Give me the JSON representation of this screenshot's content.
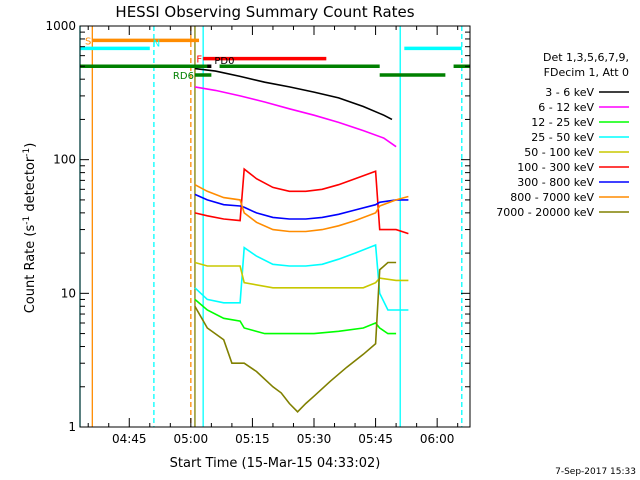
{
  "chart_data": {
    "type": "line",
    "title": "HESSI Observing Summary Count Rates",
    "xlabel": "Start Time (15-Mar-15 04:33:02)",
    "ylabel_main": "Count Rate (s",
    "ylabel_sup1": "-1",
    "ylabel_mid": " detector",
    "ylabel_sup2": "-1",
    "ylabel_end": ")",
    "ylog": true,
    "xlim": [
      "04:33",
      "06:08"
    ],
    "ylim": [
      1,
      1000
    ],
    "xticks": [
      "04:45",
      "05:00",
      "05:15",
      "05:30",
      "05:45",
      "06:00"
    ],
    "yticks": [
      {
        "value": 1,
        "label": "1"
      },
      {
        "value": 10,
        "label": "10"
      },
      {
        "value": 100,
        "label": "100"
      },
      {
        "value": 1000,
        "label": "1000"
      }
    ],
    "legend_position": "right",
    "legend_header": [
      "Det 1,3,5,6,7,9,",
      "FDecim 1, Att 0"
    ],
    "series": [
      {
        "name": "3 - 6 keV",
        "color": "#000000",
        "points": [
          [
            "05:01",
            480
          ],
          [
            "05:06",
            460
          ],
          [
            "05:12",
            420
          ],
          [
            "05:18",
            380
          ],
          [
            "05:24",
            350
          ],
          [
            "05:30",
            320
          ],
          [
            "05:36",
            290
          ],
          [
            "05:42",
            250
          ],
          [
            "05:47",
            215
          ],
          [
            "05:49",
            200
          ]
        ]
      },
      {
        "name": "6 - 12 keV",
        "color": "#ff00ff",
        "points": [
          [
            "05:01",
            350
          ],
          [
            "05:06",
            330
          ],
          [
            "05:12",
            300
          ],
          [
            "05:18",
            270
          ],
          [
            "05:24",
            240
          ],
          [
            "05:30",
            215
          ],
          [
            "05:36",
            190
          ],
          [
            "05:42",
            165
          ],
          [
            "05:47",
            145
          ],
          [
            "05:50",
            125
          ]
        ]
      },
      {
        "name": "12 - 25 keV",
        "color": "#00ff00",
        "points": [
          [
            "05:01",
            9
          ],
          [
            "05:04",
            7.5
          ],
          [
            "05:08",
            6.5
          ],
          [
            "05:12",
            6.2
          ],
          [
            "05:13",
            5.5
          ],
          [
            "05:18",
            5
          ],
          [
            "05:24",
            5
          ],
          [
            "05:30",
            5
          ],
          [
            "05:36",
            5.2
          ],
          [
            "05:42",
            5.5
          ],
          [
            "05:45",
            6
          ],
          [
            "05:46",
            5.5
          ],
          [
            "05:48",
            5
          ],
          [
            "05:50",
            5
          ]
        ]
      },
      {
        "name": "25 - 50 keV",
        "color": "#00ffff",
        "points": [
          [
            "05:01",
            11
          ],
          [
            "05:04",
            9
          ],
          [
            "05:08",
            8.5
          ],
          [
            "05:12",
            8.5
          ],
          [
            "05:13",
            22
          ],
          [
            "05:16",
            19
          ],
          [
            "05:20",
            16.5
          ],
          [
            "05:24",
            16
          ],
          [
            "05:28",
            16
          ],
          [
            "05:32",
            16.5
          ],
          [
            "05:36",
            18
          ],
          [
            "05:40",
            20
          ],
          [
            "05:45",
            23
          ],
          [
            "05:46",
            10
          ],
          [
            "05:48",
            7.5
          ],
          [
            "05:50",
            7.5
          ],
          [
            "05:53",
            7.5
          ]
        ]
      },
      {
        "name": "50 - 100 keV",
        "color": "#c8c800",
        "points": [
          [
            "05:01",
            17
          ],
          [
            "05:04",
            16
          ],
          [
            "05:08",
            16
          ],
          [
            "05:12",
            16
          ],
          [
            "05:13",
            12
          ],
          [
            "05:20",
            11
          ],
          [
            "05:28",
            11
          ],
          [
            "05:36",
            11
          ],
          [
            "05:42",
            11
          ],
          [
            "05:45",
            12
          ],
          [
            "05:46",
            13
          ],
          [
            "05:50",
            12.5
          ],
          [
            "05:53",
            12.5
          ]
        ]
      },
      {
        "name": "100 - 300 keV",
        "color": "#ff0000",
        "points": [
          [
            "05:01",
            40
          ],
          [
            "05:04",
            38
          ],
          [
            "05:08",
            36
          ],
          [
            "05:12",
            35
          ],
          [
            "05:13",
            85
          ],
          [
            "05:16",
            72
          ],
          [
            "05:20",
            62
          ],
          [
            "05:24",
            58
          ],
          [
            "05:28",
            58
          ],
          [
            "05:32",
            60
          ],
          [
            "05:36",
            65
          ],
          [
            "05:40",
            72
          ],
          [
            "05:45",
            82
          ],
          [
            "05:46",
            30
          ],
          [
            "05:48",
            30
          ],
          [
            "05:50",
            30
          ],
          [
            "05:53",
            28
          ]
        ]
      },
      {
        "name": "300 - 800 keV",
        "color": "#0000ff",
        "points": [
          [
            "05:01",
            55
          ],
          [
            "05:04",
            50
          ],
          [
            "05:08",
            46
          ],
          [
            "05:12",
            45
          ],
          [
            "05:13",
            44
          ],
          [
            "05:16",
            40
          ],
          [
            "05:20",
            37
          ],
          [
            "05:24",
            36
          ],
          [
            "05:28",
            36
          ],
          [
            "05:32",
            37
          ],
          [
            "05:36",
            39
          ],
          [
            "05:40",
            42
          ],
          [
            "05:45",
            46
          ],
          [
            "05:46",
            48
          ],
          [
            "05:50",
            50
          ],
          [
            "05:53",
            50
          ]
        ]
      },
      {
        "name": "800 - 7000 keV",
        "color": "#ff8c00",
        "points": [
          [
            "05:01",
            65
          ],
          [
            "05:04",
            58
          ],
          [
            "05:08",
            52
          ],
          [
            "05:12",
            50
          ],
          [
            "05:13",
            40
          ],
          [
            "05:16",
            34
          ],
          [
            "05:20",
            30
          ],
          [
            "05:24",
            29
          ],
          [
            "05:28",
            29
          ],
          [
            "05:32",
            30
          ],
          [
            "05:36",
            32
          ],
          [
            "05:40",
            35
          ],
          [
            "05:45",
            40
          ],
          [
            "05:46",
            45
          ],
          [
            "05:50",
            50
          ],
          [
            "05:53",
            53
          ]
        ]
      },
      {
        "name": "7000 - 20000 keV",
        "color": "#808000",
        "points": [
          [
            "05:01",
            8
          ],
          [
            "05:04",
            5.5
          ],
          [
            "05:08",
            4.5
          ],
          [
            "05:10",
            3
          ],
          [
            "05:13",
            3
          ],
          [
            "05:16",
            2.6
          ],
          [
            "05:20",
            2
          ],
          [
            "05:22",
            1.8
          ],
          [
            "05:24",
            1.5
          ],
          [
            "05:26",
            1.3
          ],
          [
            "05:28",
            1.5
          ],
          [
            "05:30",
            1.7
          ],
          [
            "05:34",
            2.2
          ],
          [
            "05:38",
            2.8
          ],
          [
            "05:42",
            3.5
          ],
          [
            "05:45",
            4.2
          ],
          [
            "05:46",
            15
          ],
          [
            "05:48",
            17
          ],
          [
            "05:50",
            17
          ]
        ]
      }
    ],
    "event_bars": [
      {
        "label": "S",
        "color": "#ff8c00",
        "y": 780,
        "start": "04:36",
        "end": "05:02",
        "label_side": "left"
      },
      {
        "label": "N",
        "color": "#00ffff",
        "y": 680,
        "start": "04:33",
        "end": "04:50",
        "label_side": "right"
      },
      {
        "label": "N",
        "color": "#00ffff",
        "y": 680,
        "start": "05:52",
        "end": "06:06",
        "label_side": "none"
      },
      {
        "label": "F",
        "color": "#ff0000",
        "y": 570,
        "start": "05:03",
        "end": "05:33",
        "label_side": "left"
      },
      {
        "label": "PD0",
        "color": "#000000",
        "y": 500,
        "start": "05:03",
        "end": "05:05",
        "label_side": "right"
      },
      {
        "label": "",
        "color": "#008000",
        "y": 500,
        "start": "04:33",
        "end": "05:04",
        "label_side": "none"
      },
      {
        "label": "",
        "color": "#008000",
        "y": 500,
        "start": "05:07",
        "end": "05:46",
        "label_side": "none"
      },
      {
        "label": "",
        "color": "#008000",
        "y": 500,
        "start": "06:04",
        "end": "06:08",
        "label_side": "none"
      },
      {
        "label": "RD6",
        "color": "#008000",
        "y": 430,
        "start": "05:01",
        "end": "05:05",
        "label_side": "left"
      },
      {
        "label": "",
        "color": "#008000",
        "y": 430,
        "start": "05:46",
        "end": "06:02",
        "label_side": "none"
      }
    ],
    "vlines": [
      {
        "time": "04:33",
        "color": "#00ffff",
        "dash": false
      },
      {
        "time": "04:36",
        "color": "#ff8c00",
        "dash": false
      },
      {
        "time": "04:51",
        "color": "#00ffff",
        "dash": true
      },
      {
        "time": "05:00",
        "color": "#ff8c00",
        "dash": true
      },
      {
        "time": "05:01",
        "color": "#808000",
        "dash": false
      },
      {
        "time": "05:03",
        "color": "#00ffff",
        "dash": false
      },
      {
        "time": "05:51",
        "color": "#00ffff",
        "dash": false
      },
      {
        "time": "06:06",
        "color": "#00ffff",
        "dash": true
      }
    ],
    "footer_date": "7-Sep-2017 15:33"
  }
}
